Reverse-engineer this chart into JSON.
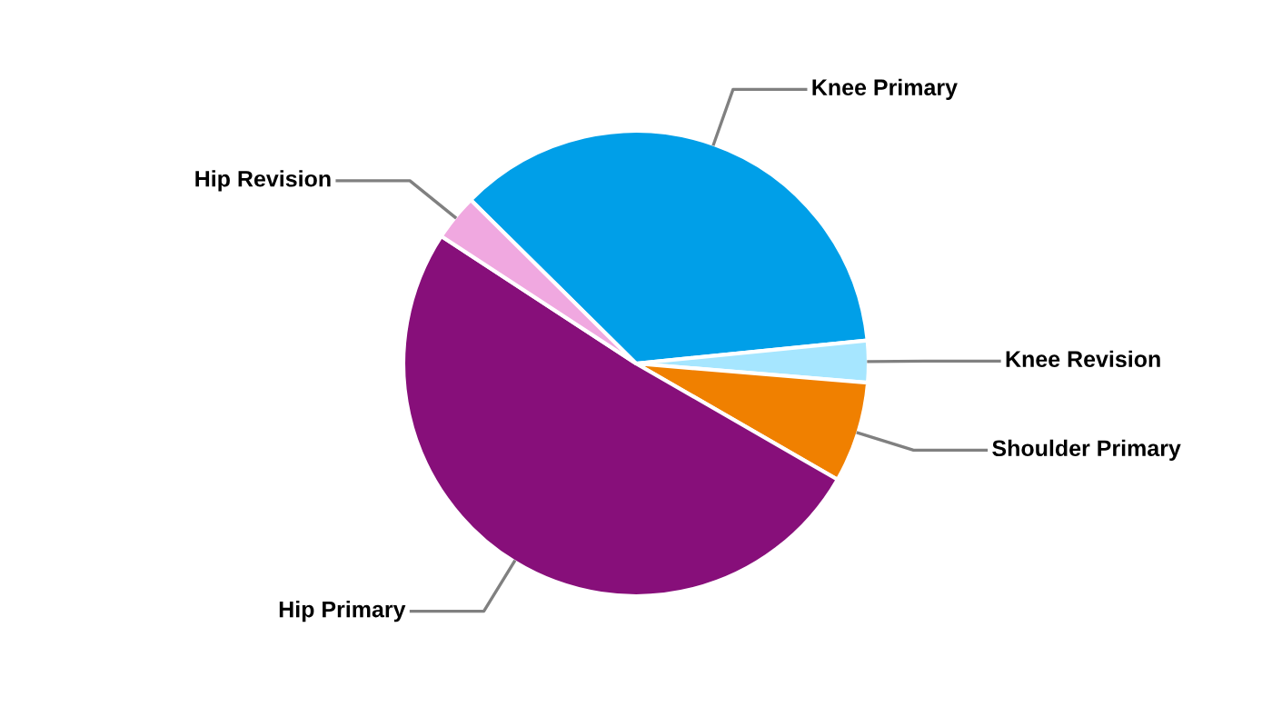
{
  "chart_data": {
    "type": "pie",
    "categories": [
      "Knee Primary",
      "Knee Revision",
      "Shoulder Primary",
      "Hip Primary",
      "Hip Revision"
    ],
    "values": [
      36.0,
      2.9,
      7.0,
      50.9,
      3.2
    ],
    "colors": [
      "#009fe8",
      "#a6e6ff",
      "#f08000",
      "#870f7a",
      "#f0a8e0"
    ],
    "legend": false
  }
}
